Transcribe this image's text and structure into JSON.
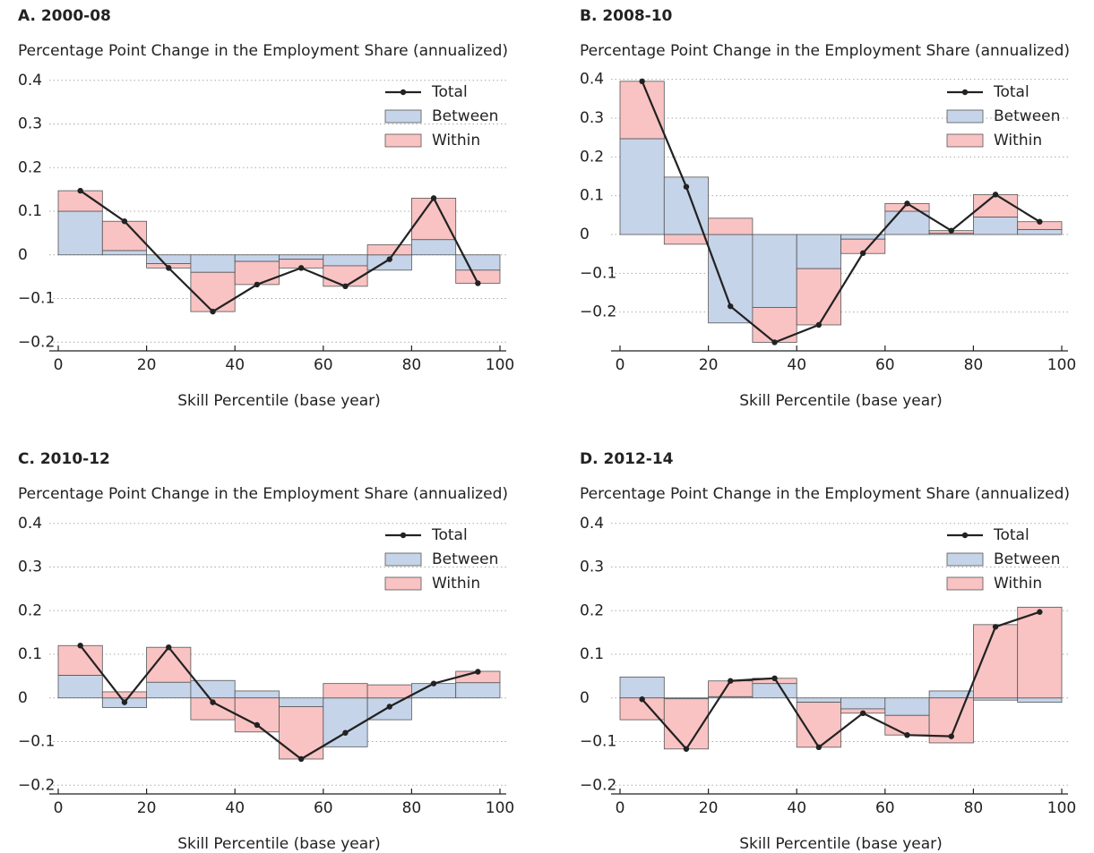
{
  "chart_data": [
    {
      "type": "bar",
      "title": "A. 2000-08",
      "ylabel": "Percentage Point Change in the Employment Share (annualized)",
      "xlabel": "Skill Percentile (base year)",
      "bins": [
        0,
        10,
        20,
        30,
        40,
        50,
        60,
        70,
        80,
        90,
        100
      ],
      "x": [
        5,
        15,
        25,
        35,
        45,
        55,
        65,
        75,
        85,
        95
      ],
      "xlim": [
        0,
        100
      ],
      "xticks": [
        0,
        20,
        40,
        60,
        80,
        100
      ],
      "ylim": [
        -0.22,
        0.42
      ],
      "yticks": [
        {
          "value": -0.2,
          "label": "−0.2"
        },
        {
          "value": -0.1,
          "label": "−0.1"
        },
        0,
        0.1,
        0.2,
        0.3,
        0.4
      ],
      "grid": true,
      "legend": "upper right",
      "series": [
        {
          "name": "Total",
          "type": "line",
          "color": "#222222",
          "values": [
            0.147,
            0.077,
            -0.03,
            -0.13,
            -0.068,
            -0.03,
            -0.072,
            -0.01,
            0.13,
            -0.065
          ]
        },
        {
          "name": "Between",
          "type": "bar",
          "color": "#c5d4e9",
          "values": [
            0.1,
            0.01,
            -0.02,
            -0.04,
            -0.015,
            -0.01,
            -0.025,
            -0.035,
            0.035,
            -0.035
          ]
        },
        {
          "name": "Within",
          "type": "bar",
          "color": "#f9c3c3",
          "values": [
            0.047,
            0.067,
            -0.01,
            -0.09,
            -0.053,
            -0.02,
            -0.047,
            0.023,
            0.095,
            -0.03
          ]
        }
      ]
    },
    {
      "type": "bar",
      "title": "B. 2008-10",
      "ylabel": "Percentage Point Change in the Employment Share (annualized)",
      "xlabel": "Skill Percentile (base year)",
      "bins": [
        0,
        10,
        20,
        30,
        40,
        50,
        60,
        70,
        80,
        90,
        100
      ],
      "x": [
        5,
        15,
        25,
        35,
        45,
        55,
        65,
        75,
        85,
        95
      ],
      "xlim": [
        0,
        100
      ],
      "xticks": [
        0,
        20,
        40,
        60,
        80,
        100
      ],
      "ylim": [
        -0.3,
        0.42
      ],
      "yticks": [
        {
          "value": -0.2,
          "label": "−0.2"
        },
        {
          "value": -0.1,
          "label": "−0.1"
        },
        0,
        0.1,
        0.2,
        0.3,
        0.4
      ],
      "grid": true,
      "legend": "upper right",
      "series": [
        {
          "name": "Total",
          "type": "line",
          "color": "#222222",
          "values": [
            0.395,
            0.123,
            -0.185,
            -0.278,
            -0.233,
            -0.048,
            0.08,
            0.01,
            0.103,
            0.033
          ]
        },
        {
          "name": "Between",
          "type": "bar",
          "color": "#c5d4e9",
          "values": [
            0.247,
            0.148,
            -0.228,
            -0.188,
            -0.088,
            -0.012,
            0.06,
            0.003,
            0.045,
            0.013
          ]
        },
        {
          "name": "Within",
          "type": "bar",
          "color": "#f9c3c3",
          "values": [
            0.148,
            -0.025,
            0.042,
            -0.09,
            -0.145,
            -0.037,
            0.02,
            0.007,
            0.058,
            0.02
          ]
        }
      ]
    },
    {
      "type": "bar",
      "title": "C. 2010-12",
      "ylabel": "Percentage Point Change in the Employment Share (annualized)",
      "xlabel": "Skill Percentile (base year)",
      "bins": [
        0,
        10,
        20,
        30,
        40,
        50,
        60,
        70,
        80,
        90,
        100
      ],
      "x": [
        5,
        15,
        25,
        35,
        45,
        55,
        65,
        75,
        85,
        95
      ],
      "xlim": [
        0,
        100
      ],
      "xticks": [
        0,
        20,
        40,
        60,
        80,
        100
      ],
      "ylim": [
        -0.22,
        0.42
      ],
      "yticks": [
        {
          "value": -0.2,
          "label": "−0.2"
        },
        {
          "value": -0.1,
          "label": "−0.1"
        },
        0,
        0.1,
        0.2,
        0.3,
        0.4
      ],
      "grid": true,
      "legend": "upper right",
      "series": [
        {
          "name": "Total",
          "type": "line",
          "color": "#222222",
          "values": [
            0.12,
            -0.01,
            0.116,
            -0.01,
            -0.062,
            -0.14,
            -0.08,
            -0.02,
            0.033,
            0.06
          ]
        },
        {
          "name": "Between",
          "type": "bar",
          "color": "#c5d4e9",
          "values": [
            0.052,
            -0.022,
            0.036,
            0.04,
            0.016,
            -0.02,
            -0.112,
            -0.05,
            0.033,
            0.035
          ]
        },
        {
          "name": "Within",
          "type": "bar",
          "color": "#f9c3c3",
          "values": [
            0.068,
            0.014,
            0.08,
            -0.05,
            -0.078,
            -0.12,
            0.033,
            0.03,
            0,
            0.026
          ]
        }
      ]
    },
    {
      "type": "bar",
      "title": "D. 2012-14",
      "ylabel": "Percentage Point Change in the Employment Share (annualized)",
      "xlabel": "Skill Percentile (base year)",
      "bins": [
        0,
        10,
        20,
        30,
        40,
        50,
        60,
        70,
        80,
        90,
        100
      ],
      "x": [
        5,
        15,
        25,
        35,
        45,
        55,
        65,
        75,
        85,
        95
      ],
      "xlim": [
        0,
        100
      ],
      "xticks": [
        0,
        20,
        40,
        60,
        80,
        100
      ],
      "ylim": [
        -0.22,
        0.42
      ],
      "yticks": [
        {
          "value": -0.2,
          "label": "−0.2"
        },
        {
          "value": -0.1,
          "label": "−0.1"
        },
        0,
        0.1,
        0.2,
        0.3,
        0.4
      ],
      "grid": true,
      "legend": "upper right",
      "series": [
        {
          "name": "Total",
          "type": "line",
          "color": "#222222",
          "values": [
            -0.003,
            -0.117,
            0.039,
            0.045,
            -0.113,
            -0.035,
            -0.085,
            -0.088,
            0.163,
            0.197
          ]
        },
        {
          "name": "Between",
          "type": "bar",
          "color": "#c5d4e9",
          "values": [
            0.048,
            -0.002,
            0.003,
            0.033,
            -0.01,
            -0.025,
            -0.04,
            0.016,
            -0.005,
            -0.01
          ]
        },
        {
          "name": "Within",
          "type": "bar",
          "color": "#f9c3c3",
          "values": [
            -0.05,
            -0.115,
            0.036,
            0.012,
            -0.103,
            -0.01,
            -0.045,
            -0.103,
            0.168,
            0.208
          ]
        }
      ]
    }
  ]
}
